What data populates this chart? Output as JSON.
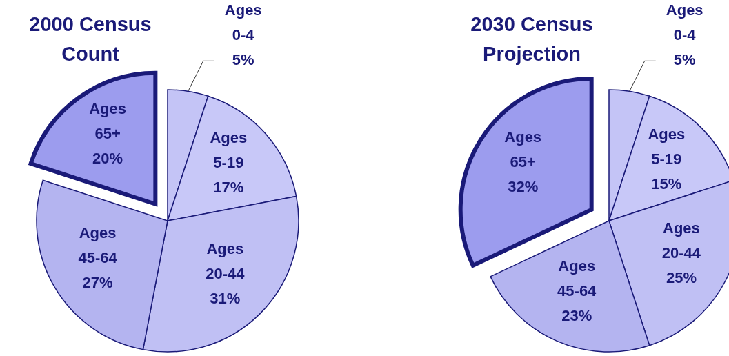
{
  "chart_data": [
    {
      "type": "pie",
      "title": "2000 Census Count",
      "categories": [
        "Ages 0-4",
        "Ages 5-19",
        "Ages 20-44",
        "Ages 45-64",
        "Ages 65+"
      ],
      "values": [
        5,
        17,
        31,
        27,
        20
      ],
      "value_labels": [
        "5%",
        "17%",
        "31%",
        "27%",
        "20%"
      ],
      "colors": [
        "#c4c4f6",
        "#c8c8f8",
        "#c0c0f4",
        "#b4b4f0",
        "#9c9cee"
      ]
    },
    {
      "type": "pie",
      "title": "2030 Census Projection",
      "categories": [
        "Ages 0-4",
        "Ages 5-19",
        "Ages 20-44",
        "Ages 45-64",
        "Ages 65+"
      ],
      "values": [
        5,
        15,
        25,
        23,
        32
      ],
      "value_labels": [
        "5%",
        "15%",
        "25%",
        "23%",
        "32%"
      ],
      "colors": [
        "#c4c4f6",
        "#c8c8f8",
        "#c0c0f4",
        "#b4b4f0",
        "#9c9cee"
      ]
    }
  ]
}
